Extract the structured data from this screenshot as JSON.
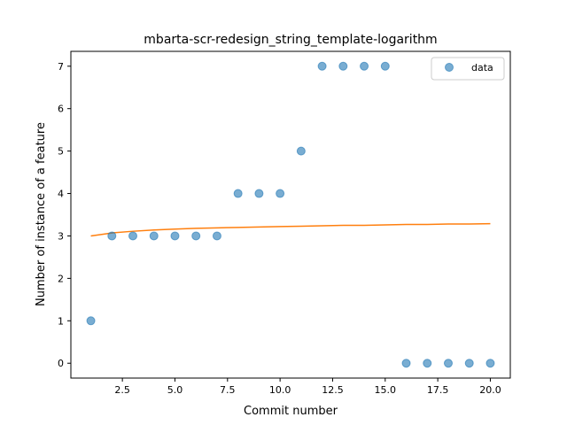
{
  "chart_data": {
    "type": "scatter",
    "title": "mbarta-scr-redesign_string_template-logarithm",
    "xlabel": "Commit number",
    "ylabel": "Number of instance of a feature",
    "xlim": [
      0.05,
      20.95
    ],
    "ylim": [
      -0.35,
      7.35
    ],
    "grid": false,
    "legend_position": "top-right",
    "x_ticks": [
      2.5,
      5.0,
      7.5,
      10.0,
      12.5,
      15.0,
      17.5,
      20.0
    ],
    "x_tick_labels": [
      "2.5",
      "5.0",
      "7.5",
      "10.0",
      "12.5",
      "15.0",
      "17.5",
      "20.0"
    ],
    "y_ticks": [
      0,
      1,
      2,
      3,
      4,
      5,
      6,
      7
    ],
    "y_tick_labels": [
      "0",
      "1",
      "2",
      "3",
      "4",
      "5",
      "6",
      "7"
    ],
    "series": [
      {
        "name": "data",
        "kind": "scatter",
        "color": "#1f77b4",
        "x": [
          1,
          2,
          3,
          4,
          5,
          6,
          7,
          8,
          9,
          10,
          11,
          12,
          13,
          14,
          15,
          16,
          17,
          18,
          19,
          20
        ],
        "y": [
          1,
          3,
          3,
          3,
          3,
          3,
          3,
          4,
          4,
          4,
          5,
          7,
          7,
          7,
          7,
          0,
          0,
          0,
          0,
          0
        ]
      },
      {
        "kind": "line",
        "color": "#ff7f0e",
        "x": [
          1,
          2,
          3,
          4,
          5,
          6,
          7,
          8,
          9,
          10,
          11,
          12,
          13,
          14,
          15,
          16,
          17,
          18,
          19,
          20
        ],
        "y": [
          3.0,
          3.07,
          3.11,
          3.14,
          3.16,
          3.18,
          3.19,
          3.2,
          3.21,
          3.22,
          3.23,
          3.24,
          3.25,
          3.25,
          3.26,
          3.27,
          3.27,
          3.28,
          3.28,
          3.29
        ]
      }
    ]
  }
}
